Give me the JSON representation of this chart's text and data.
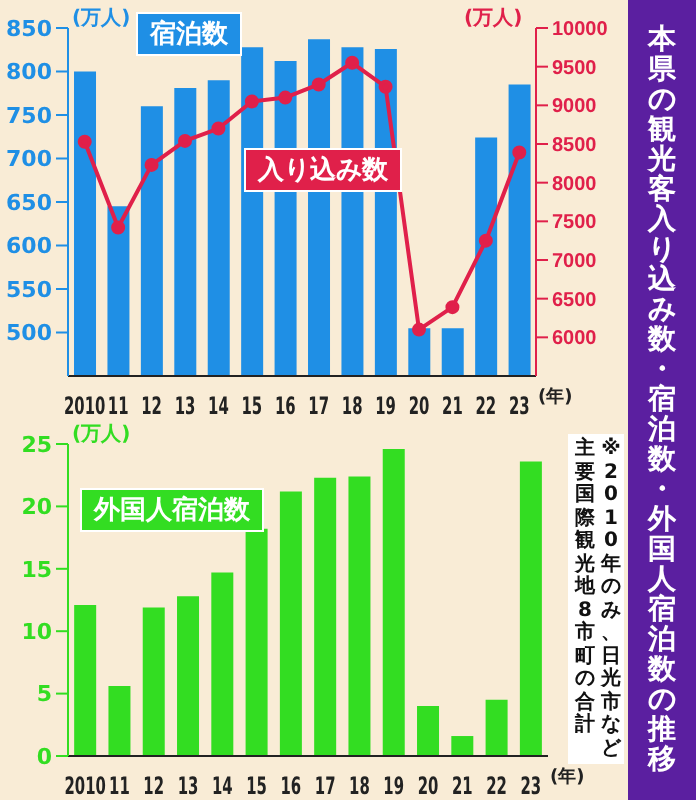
{
  "chart_data": [
    {
      "type": "bar",
      "title": "本県の観光客入り込み数・宿泊数・外国人宿泊数の推移",
      "categories": [
        "2010",
        "11",
        "12",
        "13",
        "14",
        "15",
        "16",
        "17",
        "18",
        "19",
        "20",
        "21",
        "22",
        "23"
      ],
      "series": [
        {
          "name": "宿泊数",
          "type": "bar",
          "color": "#1f8fe5",
          "values": [
            800,
            645,
            760,
            781,
            790,
            828,
            812,
            837,
            828,
            826,
            505,
            505,
            724,
            785
          ]
        },
        {
          "name": "入り込み数",
          "type": "line",
          "axis": "y2",
          "color": "#e0204a",
          "values": [
            8530,
            7420,
            8230,
            8540,
            8700,
            9050,
            9100,
            9270,
            9550,
            9240,
            6100,
            6390,
            7250,
            8390
          ]
        }
      ],
      "xlabel": "(年)",
      "ylabel": "(万人)",
      "y2label": "(万人)",
      "ylim": [
        450,
        850
      ],
      "yticks": [
        500,
        550,
        600,
        650,
        700,
        750,
        800,
        850
      ],
      "y2lim": [
        5500,
        10000
      ],
      "y2ticks": [
        6000,
        6500,
        7000,
        7500,
        8000,
        8500,
        9000,
        9500,
        10000
      ],
      "marker": "circle",
      "line_style": "solid",
      "grid": false,
      "legend": false
    },
    {
      "type": "bar",
      "categories": [
        "2010",
        "11",
        "12",
        "13",
        "14",
        "15",
        "16",
        "17",
        "18",
        "19",
        "20",
        "21",
        "22",
        "23"
      ],
      "series": [
        {
          "name": "外国人宿泊数",
          "color": "#33dd22",
          "values": [
            12.1,
            5.6,
            11.9,
            12.8,
            14.7,
            18.2,
            21.2,
            22.3,
            22.4,
            24.6,
            4.0,
            1.6,
            4.5,
            23.6
          ]
        }
      ],
      "xlabel": "(年)",
      "ylabel": "(万人)",
      "ylim": [
        0,
        25
      ],
      "yticks": [
        0,
        5,
        10,
        15,
        20,
        25
      ],
      "grid": false,
      "legend": false,
      "annotations": [
        "※2010年のみ、日光市など",
        "主要国際観光地8市町の合計"
      ]
    }
  ]
}
